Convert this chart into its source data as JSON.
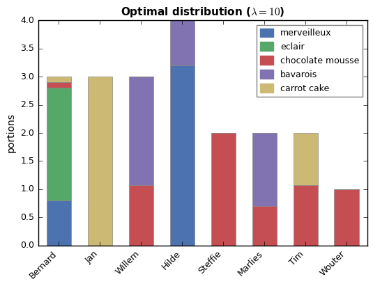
{
  "categories": [
    "Bernard",
    "Jan",
    "Willem",
    "Hilde",
    "Steffie",
    "Marlies",
    "Tim",
    "Wouter"
  ],
  "desserts": [
    "merveilleux",
    "eclair",
    "chocolate mousse",
    "bavarois",
    "carrot cake"
  ],
  "colors": [
    "#4c72b0",
    "#55a868",
    "#c44e52",
    "#8172b2",
    "#ccb974"
  ],
  "values": {
    "merveilleux": [
      0.8,
      0.0,
      0.0,
      3.2,
      0.0,
      0.0,
      0.0,
      0.0
    ],
    "eclair": [
      2.0,
      0.0,
      0.0,
      0.0,
      0.0,
      0.0,
      0.0,
      0.0
    ],
    "chocolate mousse": [
      0.1,
      0.0,
      1.07,
      0.0,
      2.0,
      0.7,
      1.07,
      1.0
    ],
    "bavarois": [
      0.0,
      0.0,
      1.93,
      0.8,
      0.0,
      1.3,
      0.0,
      0.0
    ],
    "carrot cake": [
      0.1,
      3.0,
      0.0,
      0.0,
      0.0,
      0.0,
      0.93,
      0.0
    ]
  },
  "title": "Optimal distribution ($\\lambda=10$)",
  "ylabel": "portions",
  "ylim": [
    0,
    4.0
  ],
  "yticks": [
    0.0,
    0.5,
    1.0,
    1.5,
    2.0,
    2.5,
    3.0,
    3.5,
    4.0
  ],
  "bar_width": 0.6
}
